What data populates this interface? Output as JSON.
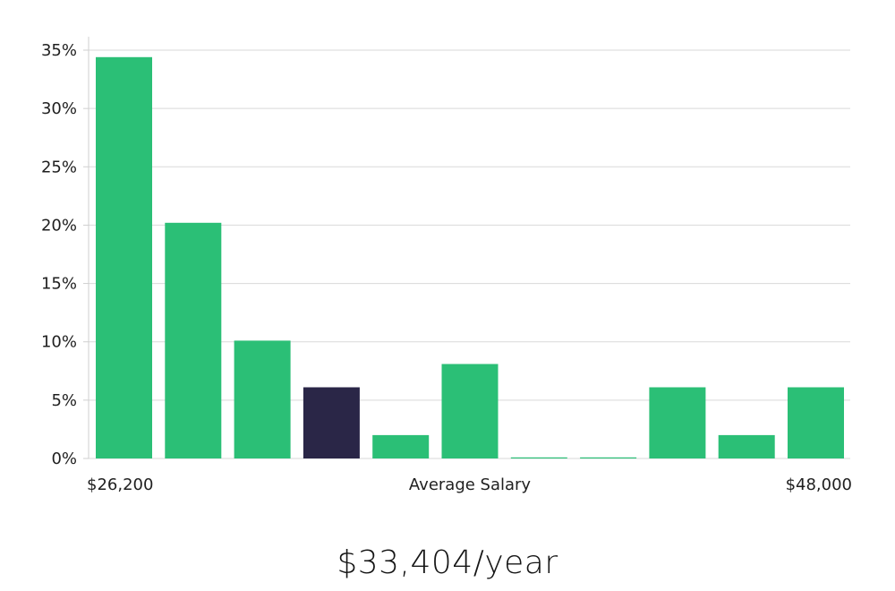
{
  "chart_data": {
    "type": "bar",
    "categories": [
      "1",
      "2",
      "3",
      "4",
      "5",
      "6",
      "7",
      "8",
      "9",
      "10",
      "11"
    ],
    "values": [
      34.4,
      20.2,
      10.1,
      6.1,
      2.0,
      8.1,
      0.05,
      0.05,
      6.1,
      2.0,
      6.1
    ],
    "highlight_index": 3,
    "ylim": [
      0,
      35
    ],
    "yticks": [
      0,
      5,
      10,
      15,
      20,
      25,
      30,
      35
    ],
    "ytick_labels": [
      "0%",
      "5%",
      "10%",
      "15%",
      "20%",
      "25%",
      "30%",
      "35%"
    ],
    "x_left_label": "$26,200",
    "x_center_label": "Average Salary",
    "x_right_label": "$48,000",
    "grid": true,
    "colors": {
      "bar": "#2bbf76",
      "highlight": "#2a2647",
      "grid": "#d9d9d9",
      "axis": "#cfcfcf"
    }
  },
  "summary": {
    "salary": "$33,404/year"
  }
}
